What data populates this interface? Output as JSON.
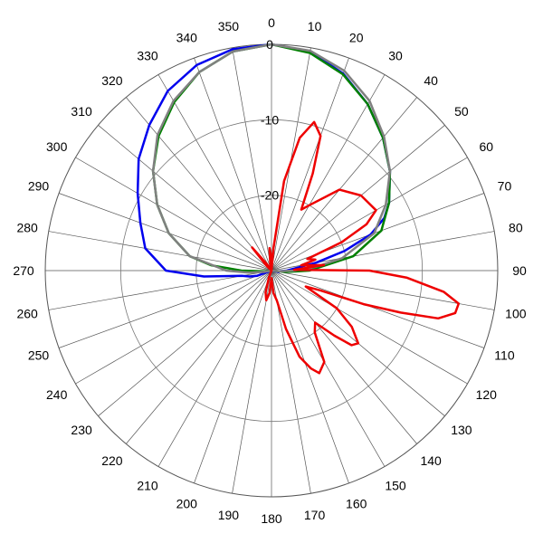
{
  "chart_data": {
    "type": "line",
    "coordinate_system": "polar",
    "angle_direction": "clockwise",
    "angle_zero": "top",
    "angle_step_deg": 10,
    "radial_range": [
      -30,
      0
    ],
    "radial_ticks": [
      0,
      -10,
      -20
    ],
    "radial_tick_labels": [
      "0",
      "-10",
      "-20"
    ],
    "grid": true,
    "angle_tick_labels": [
      "0",
      "10",
      "20",
      "30",
      "40",
      "50",
      "60",
      "70",
      "80",
      "90",
      "100",
      "110",
      "120",
      "130",
      "140",
      "150",
      "160",
      "170",
      "180",
      "190",
      "200",
      "210",
      "220",
      "230",
      "240",
      "250",
      "260",
      "270",
      "280",
      "290",
      "300",
      "310",
      "320",
      "330",
      "340",
      "350"
    ],
    "series": [
      {
        "color": "#0000ee",
        "points": [
          [
            0,
            0
          ],
          [
            10,
            -0.5
          ],
          [
            20,
            -2.2
          ],
          [
            30,
            -4.5
          ],
          [
            40,
            -7
          ],
          [
            50,
            -9.5
          ],
          [
            60,
            -12
          ],
          [
            65,
            -13.5
          ],
          [
            70,
            -16
          ],
          [
            75,
            -20
          ],
          [
            80,
            -24
          ],
          [
            85,
            -27
          ],
          [
            90,
            -28
          ],
          [
            95,
            -29
          ],
          [
            100,
            -29
          ],
          [
            180,
            -30
          ],
          [
            250,
            -28
          ],
          [
            255,
            -27
          ],
          [
            260,
            -26
          ],
          [
            265,
            -21
          ],
          [
            270,
            -16
          ],
          [
            280,
            -13
          ],
          [
            290,
            -11.5
          ],
          [
            300,
            -9.5
          ],
          [
            310,
            -7
          ],
          [
            320,
            -4.8
          ],
          [
            330,
            -2.5
          ],
          [
            340,
            -1
          ],
          [
            350,
            -0.2
          ],
          [
            360,
            0
          ]
        ]
      },
      {
        "color": "#008000",
        "points": [
          [
            0,
            0
          ],
          [
            10,
            -0.7
          ],
          [
            20,
            -2.3
          ],
          [
            30,
            -4.5
          ],
          [
            40,
            -7
          ],
          [
            50,
            -9.5
          ],
          [
            60,
            -12
          ],
          [
            70,
            -14.5
          ],
          [
            80,
            -19
          ],
          [
            90,
            -25
          ],
          [
            95,
            -28
          ],
          [
            100,
            -30
          ],
          [
            260,
            -30
          ],
          [
            265,
            -29
          ],
          [
            270,
            -26
          ],
          [
            275,
            -22
          ],
          [
            280,
            -19
          ],
          [
            290,
            -15.5
          ],
          [
            300,
            -12.5
          ],
          [
            310,
            -9.5
          ],
          [
            320,
            -6.7
          ],
          [
            330,
            -4.2
          ],
          [
            340,
            -2
          ],
          [
            350,
            -0.5
          ],
          [
            360,
            0
          ]
        ]
      },
      {
        "color": "#808080",
        "points": [
          [
            0,
            0
          ],
          [
            10,
            -0.4
          ],
          [
            20,
            -1.8
          ],
          [
            30,
            -4
          ],
          [
            40,
            -6.8
          ],
          [
            50,
            -9.5
          ],
          [
            60,
            -12.5
          ],
          [
            70,
            -15.5
          ],
          [
            80,
            -20.5
          ],
          [
            85,
            -24
          ],
          [
            90,
            -27
          ],
          [
            95,
            -29
          ],
          [
            100,
            -30
          ],
          [
            255,
            -30
          ],
          [
            260,
            -29
          ],
          [
            265,
            -27
          ],
          [
            270,
            -24
          ],
          [
            280,
            -19
          ],
          [
            290,
            -15.5
          ],
          [
            300,
            -12.5
          ],
          [
            310,
            -9.5
          ],
          [
            320,
            -6.5
          ],
          [
            330,
            -4
          ],
          [
            340,
            -2
          ],
          [
            350,
            -0.5
          ],
          [
            360,
            0
          ]
        ]
      },
      {
        "color": "#ee0000",
        "points": [
          [
            0,
            -30
          ],
          [
            5,
            -27
          ],
          [
            8,
            -18
          ],
          [
            12,
            -12
          ],
          [
            16,
            -9.5
          ],
          [
            20,
            -11
          ],
          [
            23,
            -16
          ],
          [
            26,
            -21
          ],
          [
            30,
            -20
          ],
          [
            40,
            -16
          ],
          [
            50,
            -14.5
          ],
          [
            60,
            -14
          ],
          [
            64,
            -16
          ],
          [
            68,
            -20
          ],
          [
            72,
            -25
          ],
          [
            76,
            -24
          ],
          [
            80,
            -26
          ],
          [
            84,
            -23
          ],
          [
            88,
            -27
          ],
          [
            90,
            -17
          ],
          [
            93,
            -12
          ],
          [
            97,
            -7
          ],
          [
            100,
            -4.8
          ],
          [
            103,
            -5
          ],
          [
            106,
            -7
          ],
          [
            108,
            -12
          ],
          [
            110,
            -17
          ],
          [
            112,
            -23
          ],
          [
            115,
            -25
          ],
          [
            120,
            -20
          ],
          [
            125,
            -17
          ],
          [
            130,
            -15
          ],
          [
            133,
            -15.5
          ],
          [
            136,
            -18
          ],
          [
            140,
            -21
          ],
          [
            145,
            -20
          ],
          [
            150,
            -16
          ],
          [
            155,
            -15
          ],
          [
            158,
            -16
          ],
          [
            162,
            -18
          ],
          [
            166,
            -22
          ],
          [
            170,
            -26
          ],
          [
            175,
            -27
          ],
          [
            180,
            -29
          ],
          [
            185,
            -27
          ],
          [
            190,
            -26
          ],
          [
            195,
            -27
          ],
          [
            200,
            -29
          ],
          [
            210,
            -30
          ],
          [
            250,
            -30
          ],
          [
            300,
            -30
          ],
          [
            315,
            -29
          ],
          [
            320,
            -26
          ],
          [
            325,
            -29
          ],
          [
            340,
            -30
          ],
          [
            350,
            -29
          ],
          [
            355,
            -27
          ],
          [
            358,
            -28
          ],
          [
            360,
            -30
          ]
        ]
      }
    ]
  }
}
